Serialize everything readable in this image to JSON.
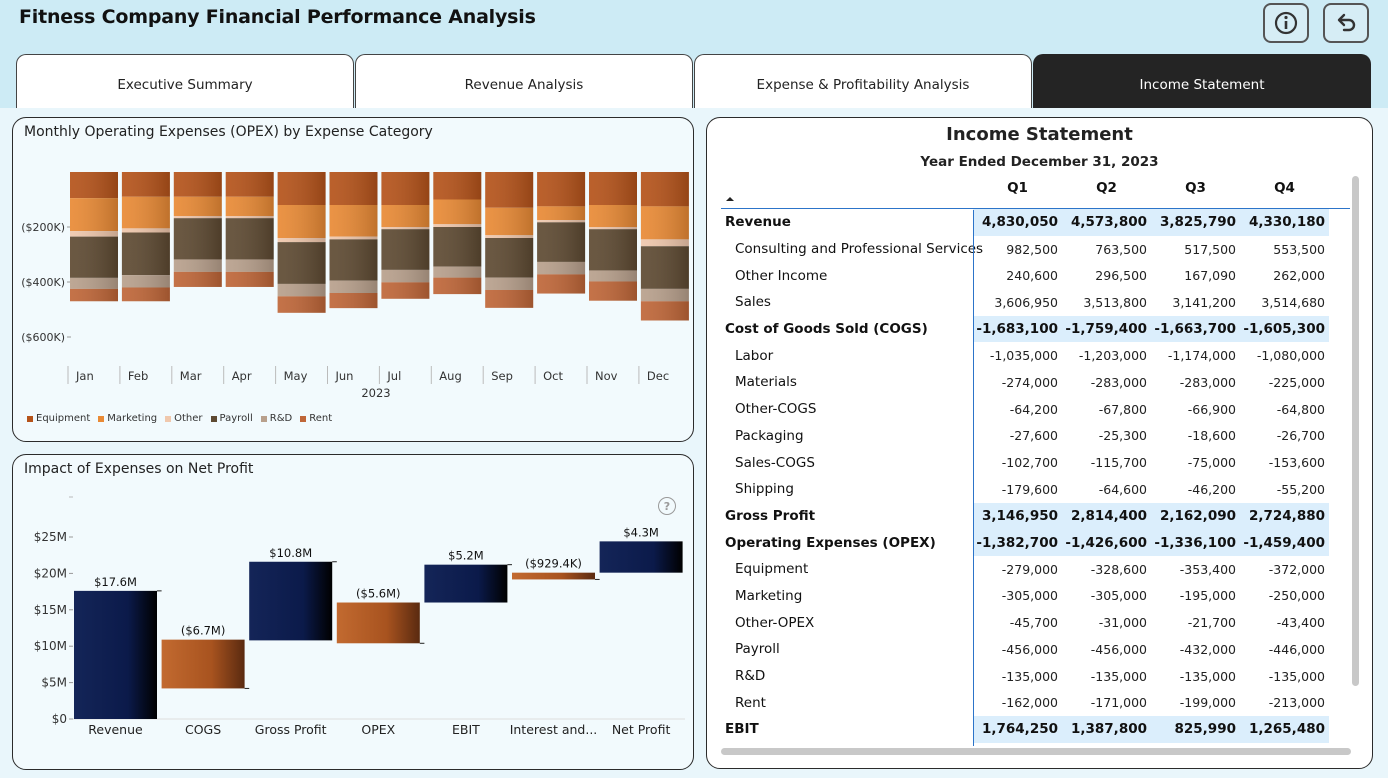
{
  "app": {
    "title": "Fitness Company Financial Performance Analysis"
  },
  "icons": {
    "info": "info-icon",
    "back": "undo-arrow-icon",
    "help": "question-mark-icon",
    "sort": "sort-up-icon"
  },
  "tabs": [
    {
      "label": "Executive Summary",
      "active": false
    },
    {
      "label": "Revenue Analysis",
      "active": false
    },
    {
      "label": "Expense & Profitability Analysis",
      "active": false
    },
    {
      "label": "Income Statement",
      "active": true
    }
  ],
  "opex_chart": {
    "title": "Monthly Operating Expenses (OPEX) by Expense Category",
    "help_glyph": "?"
  },
  "waterfall_chart": {
    "title": "Impact of Expenses on Net Profit",
    "help_glyph": "?"
  },
  "colors": {
    "Equipment": "#b5531a",
    "Marketing": "#e98a35",
    "Other": "#f0c8ad",
    "Payroll": "#5e4a32",
    "R&D": "#b8a08c",
    "Rent": "#bf6638",
    "navy": "#0b1a4a",
    "copper": "#a8531f"
  },
  "chart_data": [
    {
      "type": "bar",
      "stacked": true,
      "title": "Monthly Operating Expenses (OPEX) by Expense Category",
      "categories": [
        "Jan",
        "Feb",
        "Mar",
        "Apr",
        "May",
        "Jun",
        "Jul",
        "Aug",
        "Sep",
        "Oct",
        "Nov",
        "Dec"
      ],
      "xlabel": "2023",
      "y_ticks": [
        "($200K)",
        "($400K)",
        "($600K)"
      ],
      "ylim": [
        -650000,
        0
      ],
      "legend_position": "bottom-left",
      "series": [
        {
          "name": "Equipment",
          "values": [
            -95000,
            -90000,
            -90000,
            -90000,
            -120000,
            -120000,
            -120000,
            -100000,
            -130000,
            -125000,
            -120000,
            -125000
          ]
        },
        {
          "name": "Marketing",
          "values": [
            -120000,
            -115000,
            -70000,
            -70000,
            -120000,
            -115000,
            -80000,
            -90000,
            -100000,
            -50000,
            -80000,
            -120000
          ]
        },
        {
          "name": "Other",
          "values": [
            -20000,
            -15000,
            -8000,
            -8000,
            -15000,
            -10000,
            -8000,
            -10000,
            -10000,
            -8000,
            -8000,
            -25000
          ]
        },
        {
          "name": "Payroll",
          "values": [
            -150000,
            -155000,
            -150000,
            -150000,
            -152000,
            -150000,
            -148000,
            -144000,
            -144000,
            -144000,
            -150000,
            -155000
          ]
        },
        {
          "name": "R&D",
          "values": [
            -40000,
            -45000,
            -45000,
            -45000,
            -45000,
            -45000,
            -45000,
            -40000,
            -45000,
            -45000,
            -40000,
            -45000
          ]
        },
        {
          "name": "Rent",
          "values": [
            -45000,
            -50000,
            -55000,
            -55000,
            -60000,
            -55000,
            -60000,
            -60000,
            -65000,
            -70000,
            -70000,
            -70000
          ]
        }
      ]
    },
    {
      "type": "bar",
      "waterfall": true,
      "title": "Impact of Expenses on Net Profit",
      "categories": [
        "Revenue",
        "COGS",
        "Gross Profit",
        "OPEX",
        "EBIT",
        "Interest and...",
        "Net Profit"
      ],
      "values": [
        17.6,
        -6.7,
        10.8,
        -5.6,
        5.2,
        -0.9294,
        4.3
      ],
      "value_labels": [
        "$17.6M",
        "($6.7M)",
        "$10.8M",
        "($5.6M)",
        "$5.2M",
        "($929.4K)",
        "$4.3M"
      ],
      "bases": [
        0,
        10.9,
        10.8,
        16.0,
        16.0,
        20.1,
        20.1
      ],
      "y_ticks": [
        "$0",
        "$5M",
        "$10M",
        "$15M",
        "$20M",
        "$25M"
      ],
      "ylim": [
        0,
        27
      ]
    }
  ],
  "income_statement": {
    "title": "Income Statement",
    "subtitle": "Year Ended December 31, 2023",
    "columns": [
      "Q1",
      "Q2",
      "Q3",
      "Q4"
    ],
    "rows": [
      {
        "label": "Revenue",
        "kind": "sec",
        "values": [
          "4,830,050",
          "4,573,800",
          "3,825,790",
          "4,330,180"
        ]
      },
      {
        "label": "Consulting and Professional Services",
        "kind": "sub",
        "values": [
          "982,500",
          "763,500",
          "517,500",
          "553,500"
        ]
      },
      {
        "label": "Other Income",
        "kind": "sub",
        "values": [
          "240,600",
          "296,500",
          "167,090",
          "262,000"
        ]
      },
      {
        "label": "Sales",
        "kind": "sub",
        "values": [
          "3,606,950",
          "3,513,800",
          "3,141,200",
          "3,514,680"
        ]
      },
      {
        "label": "Cost of Goods Sold (COGS)",
        "kind": "sec",
        "values": [
          "-1,683,100",
          "-1,759,400",
          "-1,663,700",
          "-1,605,300"
        ]
      },
      {
        "label": "Labor",
        "kind": "sub",
        "values": [
          "-1,035,000",
          "-1,203,000",
          "-1,174,000",
          "-1,080,000"
        ]
      },
      {
        "label": "Materials",
        "kind": "sub",
        "values": [
          "-274,000",
          "-283,000",
          "-283,000",
          "-225,000"
        ]
      },
      {
        "label": "Other-COGS",
        "kind": "sub",
        "values": [
          "-64,200",
          "-67,800",
          "-66,900",
          "-64,800"
        ]
      },
      {
        "label": "Packaging",
        "kind": "sub",
        "values": [
          "-27,600",
          "-25,300",
          "-18,600",
          "-26,700"
        ]
      },
      {
        "label": "Sales-COGS",
        "kind": "sub",
        "values": [
          "-102,700",
          "-115,700",
          "-75,000",
          "-153,600"
        ]
      },
      {
        "label": "Shipping",
        "kind": "sub",
        "values": [
          "-179,600",
          "-64,600",
          "-46,200",
          "-55,200"
        ]
      },
      {
        "label": "Gross Profit",
        "kind": "sec",
        "values": [
          "3,146,950",
          "2,814,400",
          "2,162,090",
          "2,724,880"
        ]
      },
      {
        "label": "Operating Expenses (OPEX)",
        "kind": "sec",
        "values": [
          "-1,382,700",
          "-1,426,600",
          "-1,336,100",
          "-1,459,400"
        ]
      },
      {
        "label": "Equipment",
        "kind": "sub",
        "values": [
          "-279,000",
          "-328,600",
          "-353,400",
          "-372,000"
        ]
      },
      {
        "label": "Marketing",
        "kind": "sub",
        "values": [
          "-305,000",
          "-305,000",
          "-195,000",
          "-250,000"
        ]
      },
      {
        "label": "Other-OPEX",
        "kind": "sub",
        "values": [
          "-45,700",
          "-31,000",
          "-21,700",
          "-43,400"
        ]
      },
      {
        "label": "Payroll",
        "kind": "sub",
        "values": [
          "-456,000",
          "-456,000",
          "-432,000",
          "-446,000"
        ]
      },
      {
        "label": "R&D",
        "kind": "sub",
        "values": [
          "-135,000",
          "-135,000",
          "-135,000",
          "-135,000"
        ]
      },
      {
        "label": "Rent",
        "kind": "sub",
        "values": [
          "-162,000",
          "-171,000",
          "-199,000",
          "-213,000"
        ]
      },
      {
        "label": "EBIT",
        "kind": "sec",
        "values": [
          "1,764,250",
          "1,387,800",
          "825,990",
          "1,265,480"
        ]
      }
    ]
  }
}
